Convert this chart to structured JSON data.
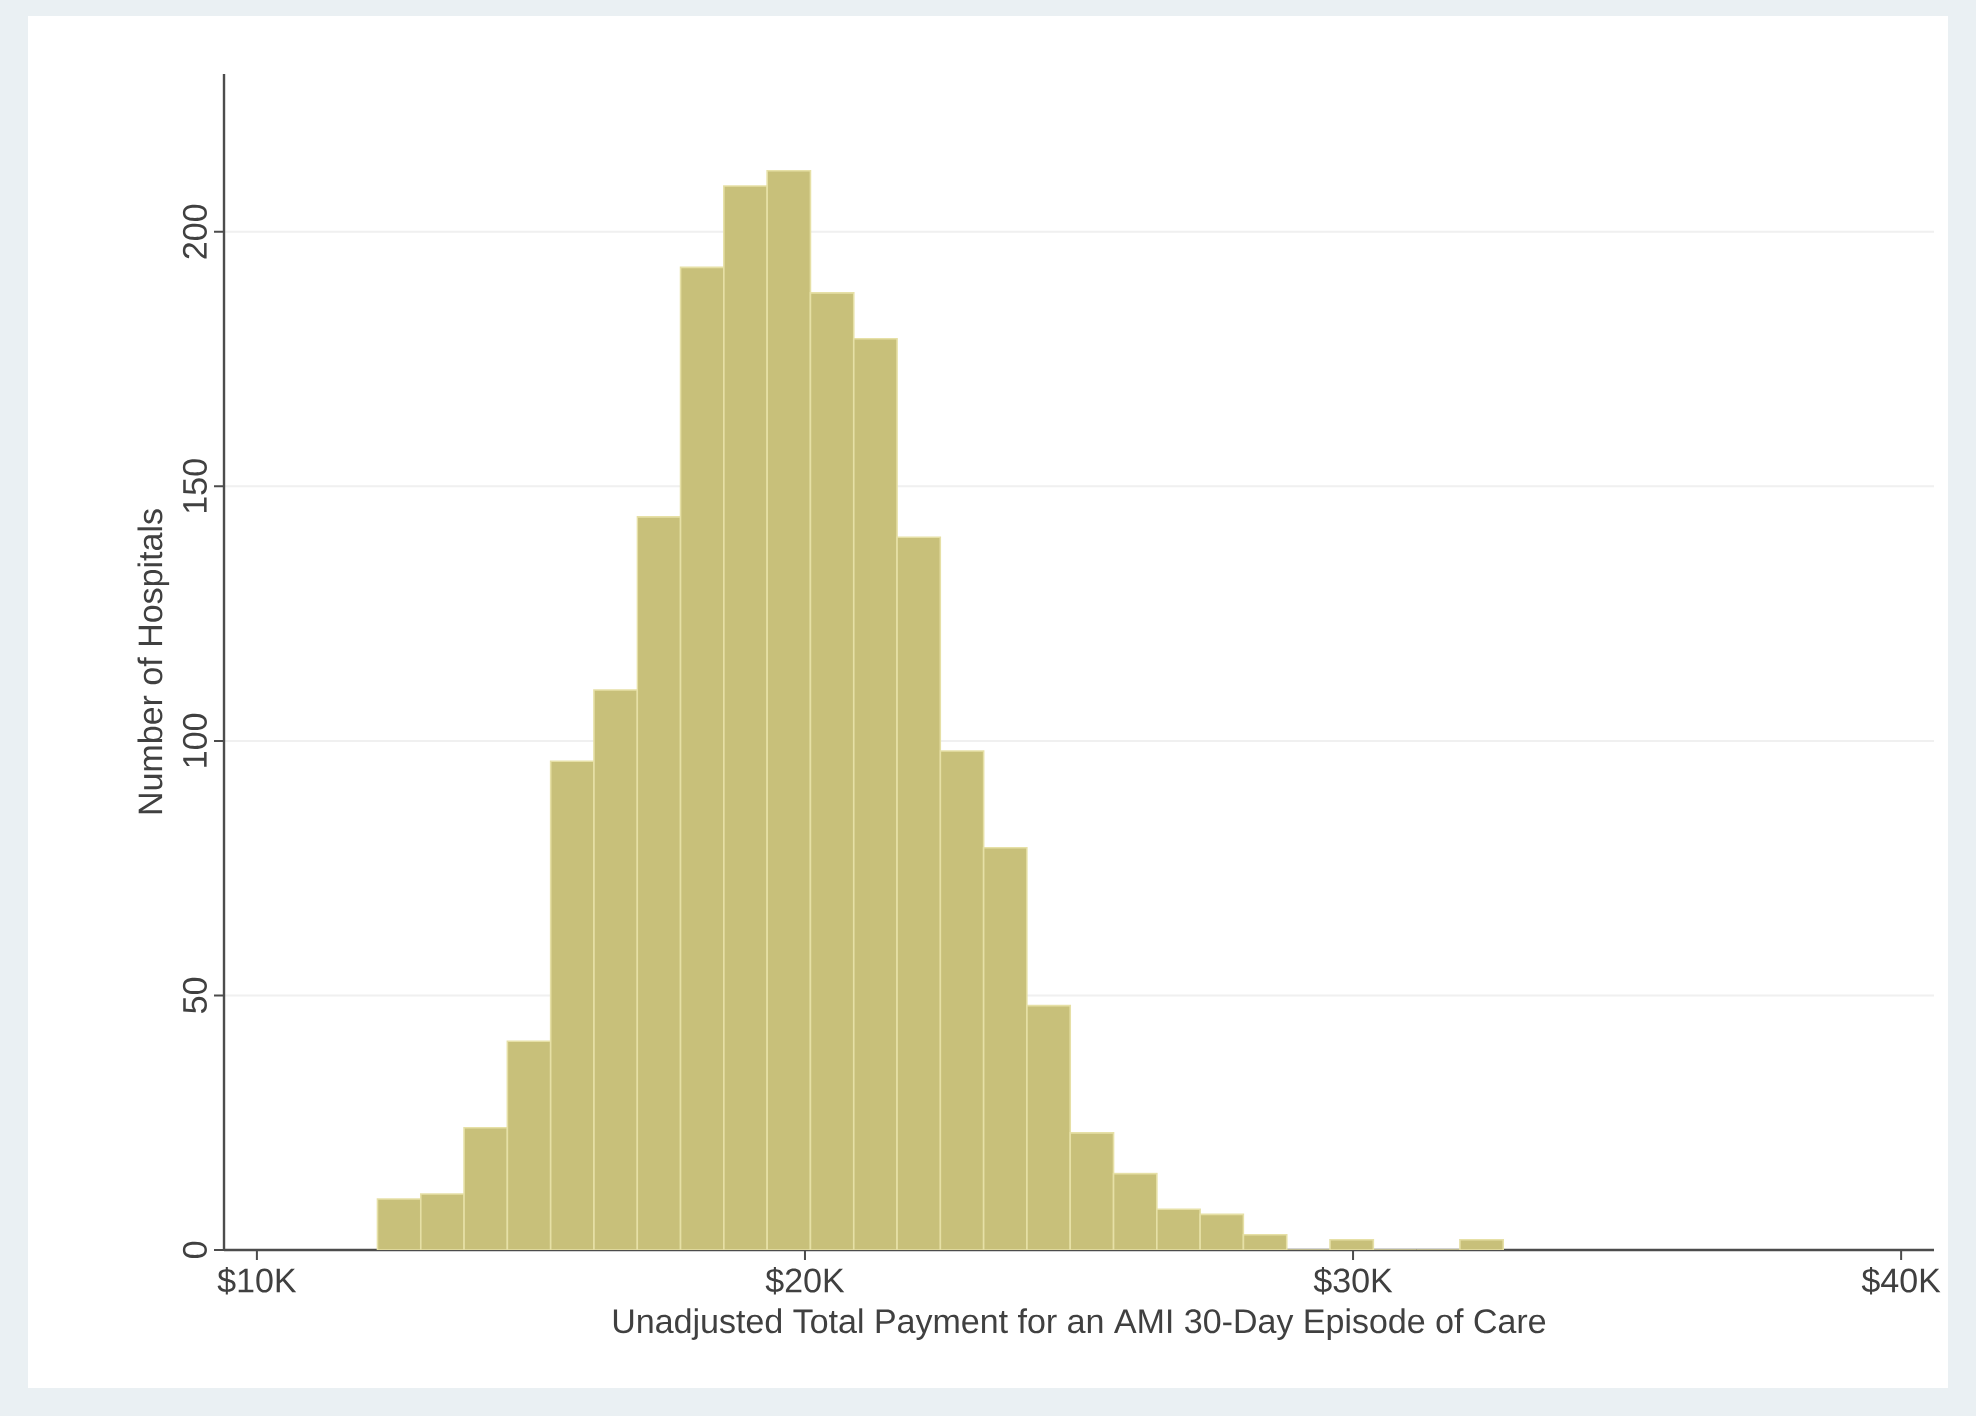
{
  "chart_data": {
    "type": "histogram",
    "xlabel": "Unadjusted Total Payment for an AMI 30-Day Episode of Care",
    "ylabel": "Number of Hospitals",
    "bins": [
      12.2,
      12.99,
      13.78,
      14.57,
      15.36,
      16.15,
      16.94,
      17.73,
      18.52,
      19.31,
      20.1,
      20.89,
      21.68,
      22.47,
      23.26,
      24.05,
      24.84,
      25.63,
      26.42,
      27.21,
      28.0,
      28.79,
      29.58,
      30.37,
      31.16,
      31.95,
      32.74
    ],
    "values": [
      10,
      11,
      24,
      41,
      96,
      110,
      144,
      193,
      209,
      212,
      188,
      179,
      140,
      98,
      79,
      48,
      23,
      15,
      8,
      7,
      3,
      0,
      2,
      0,
      0,
      2
    ],
    "color": "#c8c07a",
    "xlim": [
      9.4,
      40.6
    ],
    "ylim": [
      0,
      231
    ],
    "xticks": [
      {
        "value": 10,
        "label": "$10K"
      },
      {
        "value": 20,
        "label": "$20K"
      },
      {
        "value": 30,
        "label": "$30K"
      },
      {
        "value": 40,
        "label": "$40K"
      }
    ],
    "yticks": [
      0,
      50,
      100,
      150,
      200
    ],
    "grid": "y"
  }
}
